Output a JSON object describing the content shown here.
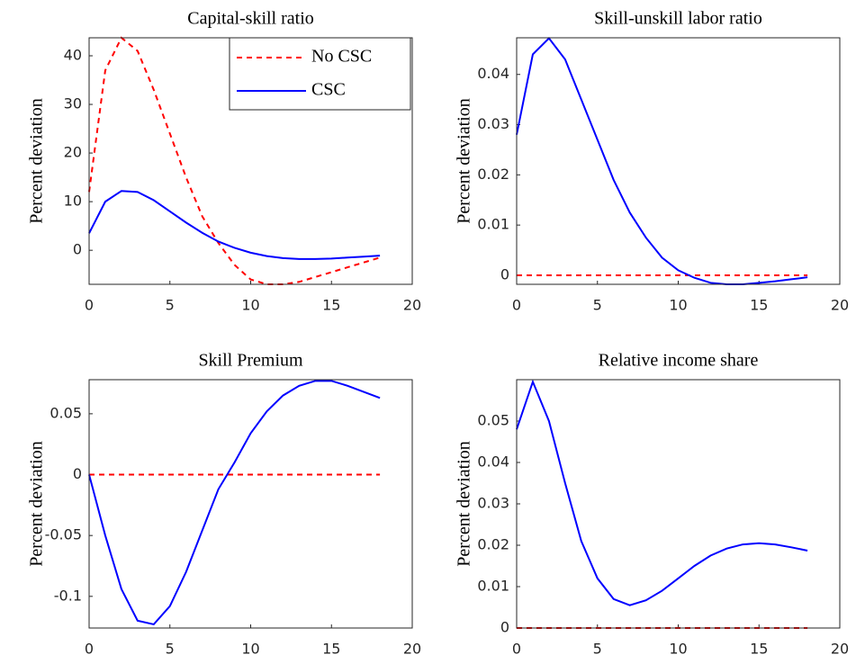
{
  "chart_data": [
    {
      "type": "line",
      "title": "Capital-skill ratio",
      "ylabel": "Percent deviation",
      "x": [
        0,
        1,
        2,
        3,
        4,
        5,
        6,
        7,
        8,
        9,
        10,
        11,
        12,
        13,
        14,
        15,
        16,
        17,
        18
      ],
      "xlim": [
        0,
        20
      ],
      "xticks": [
        0,
        5,
        10,
        15,
        20
      ],
      "ylim": [
        -7,
        43.7
      ],
      "yticks": [
        0,
        10,
        20,
        30,
        40
      ],
      "legend": "northeast",
      "series": [
        {
          "name": "No CSC",
          "color": "#ff0000",
          "dashed": true,
          "values": [
            12,
            37,
            43.7,
            41,
            33,
            24,
            15,
            7,
            1.5,
            -3,
            -6,
            -7,
            -7,
            -6.5,
            -5.5,
            -4.5,
            -3.5,
            -2.5,
            -1.5
          ]
        },
        {
          "name": "CSC",
          "color": "#0000ff",
          "dashed": false,
          "values": [
            3.5,
            10,
            12.2,
            12,
            10.3,
            8,
            5.7,
            3.6,
            1.8,
            0.5,
            -0.5,
            -1.2,
            -1.6,
            -1.8,
            -1.8,
            -1.7,
            -1.5,
            -1.3,
            -1.1
          ]
        }
      ]
    },
    {
      "type": "line",
      "title": "Skill-unskill labor ratio",
      "ylabel": "Percent deviation",
      "x": [
        0,
        1,
        2,
        3,
        4,
        5,
        6,
        7,
        8,
        9,
        10,
        11,
        12,
        13,
        14,
        15,
        16,
        17,
        18
      ],
      "xlim": [
        0,
        20
      ],
      "xticks": [
        0,
        5,
        10,
        15,
        20
      ],
      "ylim": [
        -0.0018,
        0.0473
      ],
      "yticks": [
        0,
        0.01,
        0.02,
        0.03,
        0.04
      ],
      "series": [
        {
          "color": "#ff0000",
          "dashed": true,
          "values": [
            0,
            0,
            0,
            0,
            0,
            0,
            0,
            0,
            0,
            0,
            0,
            0,
            0,
            0,
            0,
            0,
            0,
            0,
            0
          ]
        },
        {
          "color": "#0000ff",
          "dashed": false,
          "values": [
            0.028,
            0.044,
            0.0472,
            0.043,
            0.035,
            0.027,
            0.019,
            0.0125,
            0.0075,
            0.0035,
            0.001,
            -0.0005,
            -0.0015,
            -0.0018,
            -0.0018,
            -0.0015,
            -0.0012,
            -0.0008,
            -0.0004
          ]
        }
      ]
    },
    {
      "type": "line",
      "title": "Skill Premium",
      "ylabel": "Percent deviation",
      "x": [
        0,
        1,
        2,
        3,
        4,
        5,
        6,
        7,
        8,
        9,
        10,
        11,
        12,
        13,
        14,
        15,
        16,
        17,
        18
      ],
      "xlim": [
        0,
        20
      ],
      "xticks": [
        0,
        5,
        10,
        15,
        20
      ],
      "ylim": [
        -0.126,
        0.078
      ],
      "yticks": [
        -0.1,
        -0.05,
        0,
        0.05
      ],
      "series": [
        {
          "color": "#ff0000",
          "dashed": true,
          "values": [
            0,
            0,
            0,
            0,
            0,
            0,
            0,
            0,
            0,
            0,
            0,
            0,
            0,
            0,
            0,
            0,
            0,
            0,
            0
          ]
        },
        {
          "color": "#0000ff",
          "dashed": false,
          "values": [
            0,
            -0.05,
            -0.094,
            -0.12,
            -0.123,
            -0.108,
            -0.08,
            -0.046,
            -0.012,
            0.01,
            0.034,
            0.052,
            0.065,
            0.073,
            0.077,
            0.077,
            0.073,
            0.068,
            0.063
          ]
        }
      ]
    },
    {
      "type": "line",
      "title": "Relative income share",
      "ylabel": "Percent deviation",
      "x": [
        0,
        1,
        2,
        3,
        4,
        5,
        6,
        7,
        8,
        9,
        10,
        11,
        12,
        13,
        14,
        15,
        16,
        17,
        18
      ],
      "xlim": [
        0,
        20
      ],
      "xticks": [
        0,
        5,
        10,
        15,
        20
      ],
      "ylim": [
        0,
        0.06
      ],
      "yticks": [
        0,
        0.01,
        0.02,
        0.03,
        0.04,
        0.05
      ],
      "series": [
        {
          "color": "#ff0000",
          "dashed": true,
          "values": [
            0,
            0,
            0,
            0,
            0,
            0,
            0,
            0,
            0,
            0,
            0,
            0,
            0,
            0,
            0,
            0,
            0,
            0,
            0
          ]
        },
        {
          "color": "#0000ff",
          "dashed": false,
          "values": [
            0.048,
            0.0595,
            0.05,
            0.035,
            0.021,
            0.012,
            0.007,
            0.0055,
            0.0067,
            0.009,
            0.012,
            0.015,
            0.0175,
            0.0192,
            0.0202,
            0.0205,
            0.0202,
            0.0195,
            0.0187
          ]
        }
      ]
    }
  ]
}
